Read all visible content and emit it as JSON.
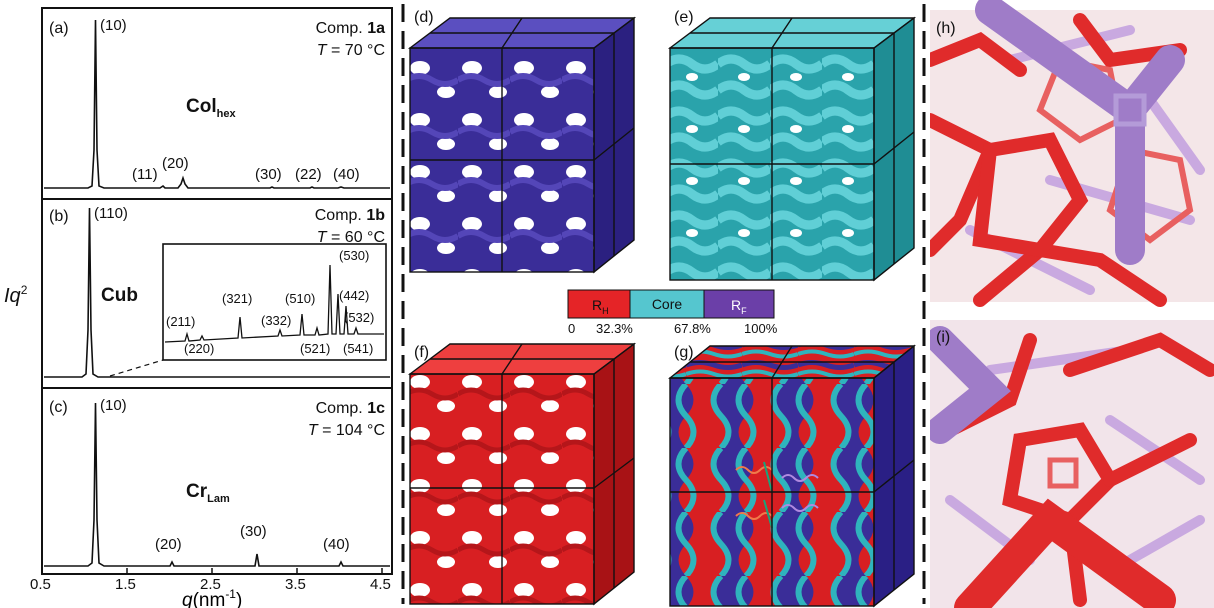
{
  "chart_data": [
    {
      "type": "line",
      "panel": "(a)",
      "compound_prefix": "Comp. ",
      "compound_id": "1a",
      "temperature_var": "T",
      "temperature_text": " = 70 °C",
      "phase_main": "Col",
      "phase_sub": "hex",
      "peaks": [
        {
          "label": "(10)",
          "q": 1.0,
          "height": 1.0
        },
        {
          "label": "(11)",
          "q": 1.73,
          "height": 0.015
        },
        {
          "label": "(20)",
          "q": 2.0,
          "height": 0.05
        },
        {
          "label": "(30)",
          "q": 3.0,
          "height": 0.018
        },
        {
          "label": "(22)",
          "q": 3.46,
          "height": 0.012
        },
        {
          "label": "(40)",
          "q": 4.0,
          "height": 0.012
        }
      ]
    },
    {
      "type": "line",
      "panel": "(b)",
      "compound_prefix": "Comp. ",
      "compound_id": "1b",
      "temperature_var": "T",
      "temperature_text": " = 60 °C",
      "phase_main": "Cub",
      "peaks": [
        {
          "label": "(110)",
          "q": 0.97,
          "height": 1.0
        }
      ],
      "inset_peaks": [
        {
          "label": "(211)",
          "q": 1.5,
          "height": 0.08
        },
        {
          "label": "(220)",
          "q": 1.73,
          "height": 0.05
        },
        {
          "label": "(321)",
          "q": 2.28,
          "height": 0.35
        },
        {
          "label": "(332)",
          "q": 2.67,
          "height": 0.1
        },
        {
          "label": "(510)",
          "q": 2.92,
          "height": 0.3
        },
        {
          "label": "(521)",
          "q": 3.0,
          "height": 0.1
        },
        {
          "label": "(530)",
          "q": 3.27,
          "height": 1.0
        },
        {
          "label": "(442)",
          "q": 3.35,
          "height": 0.55
        },
        {
          "label": "(532)",
          "q": 3.42,
          "height": 0.4
        },
        {
          "label": "(541)",
          "q": 3.5,
          "height": 0.12
        }
      ]
    },
    {
      "type": "line",
      "panel": "(c)",
      "compound_prefix": "Comp. ",
      "compound_id": "1c",
      "temperature_var": "T",
      "temperature_text": " = 104 °C",
      "phase_main": "Cr",
      "phase_sub": "Lam",
      "peaks": [
        {
          "label": "(10)",
          "q": 1.0,
          "height": 1.0
        },
        {
          "label": "(20)",
          "q": 2.0,
          "height": 0.04
        },
        {
          "label": "(30)",
          "q": 3.0,
          "height": 0.09
        },
        {
          "label": "(40)",
          "q": 4.0,
          "height": 0.03
        }
      ]
    }
  ],
  "axes": {
    "ylabel_main": "Iq",
    "ylabel_sup": "2",
    "xlabel_main": "q",
    "xlabel_unit": "(nm",
    "xlabel_sup": "-1",
    "xlabel_close": ")",
    "xlim": [
      0.5,
      4.6
    ],
    "xticks": [
      "0.5",
      "1.5",
      "2.5",
      "3.5",
      "4.5"
    ]
  },
  "panels_3d": [
    "(d)",
    "(e)",
    "(f)",
    "(g)",
    "(h)",
    "(i)"
  ],
  "legend": {
    "segments": [
      {
        "main": "R",
        "sub": "H",
        "color": "#e52427"
      },
      {
        "main": "Core",
        "sub": "",
        "color": "#55c6cf"
      },
      {
        "main": "R",
        "sub": "F",
        "color": "#6b3fa8"
      }
    ],
    "ticks": [
      "0",
      "32.3%",
      "67.8%",
      "100%"
    ]
  },
  "colors": {
    "rh_red": "#e52427",
    "core_cyan": "#55c6cf",
    "rf_purple": "#4a3ca8",
    "rf_lilac": "#a98fd2"
  }
}
